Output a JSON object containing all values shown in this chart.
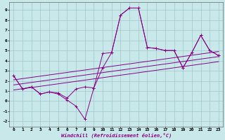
{
  "xlabel": "Windchill (Refroidissement éolien,°C)",
  "background_color": "#c8e8ea",
  "grid_color": "#a0c8cc",
  "line_color": "#880088",
  "xlim": [
    -0.5,
    23.5
  ],
  "ylim": [
    -2.5,
    9.8
  ],
  "xticks": [
    0,
    1,
    2,
    3,
    4,
    5,
    6,
    7,
    8,
    9,
    10,
    11,
    12,
    13,
    14,
    15,
    16,
    17,
    18,
    19,
    20,
    21,
    22,
    23
  ],
  "yticks": [
    -2,
    -1,
    0,
    1,
    2,
    3,
    4,
    5,
    6,
    7,
    8,
    9
  ],
  "series1_x": [
    0,
    1,
    2,
    3,
    4,
    5,
    6,
    7,
    8,
    9,
    10,
    11,
    12,
    13,
    14,
    15,
    16,
    17,
    18,
    19,
    20,
    21,
    22,
    23
  ],
  "series1_y": [
    2.5,
    1.2,
    1.4,
    0.7,
    0.9,
    0.8,
    0.3,
    1.2,
    1.4,
    1.3,
    4.7,
    4.8,
    8.5,
    9.2,
    9.2,
    5.3,
    5.2,
    5.0,
    5.0,
    3.3,
    4.8,
    6.5,
    5.0,
    4.5
  ],
  "series2_x": [
    0,
    1,
    2,
    3,
    4,
    5,
    6,
    7,
    8,
    9,
    10,
    11,
    12,
    13,
    14,
    15,
    16,
    17,
    18,
    19,
    20,
    21,
    22,
    23
  ],
  "series2_y": [
    2.5,
    1.2,
    1.4,
    0.7,
    0.9,
    0.7,
    0.1,
    -0.5,
    -1.8,
    1.3,
    3.3,
    4.8,
    8.5,
    9.2,
    9.2,
    5.3,
    5.2,
    5.0,
    5.0,
    3.3,
    4.8,
    6.5,
    5.0,
    4.5
  ],
  "regression_lines": [
    {
      "x": [
        0,
        23
      ],
      "y": [
        2.1,
        4.9
      ]
    },
    {
      "x": [
        0,
        23
      ],
      "y": [
        1.6,
        4.4
      ]
    },
    {
      "x": [
        0,
        23
      ],
      "y": [
        1.1,
        3.9
      ]
    }
  ]
}
